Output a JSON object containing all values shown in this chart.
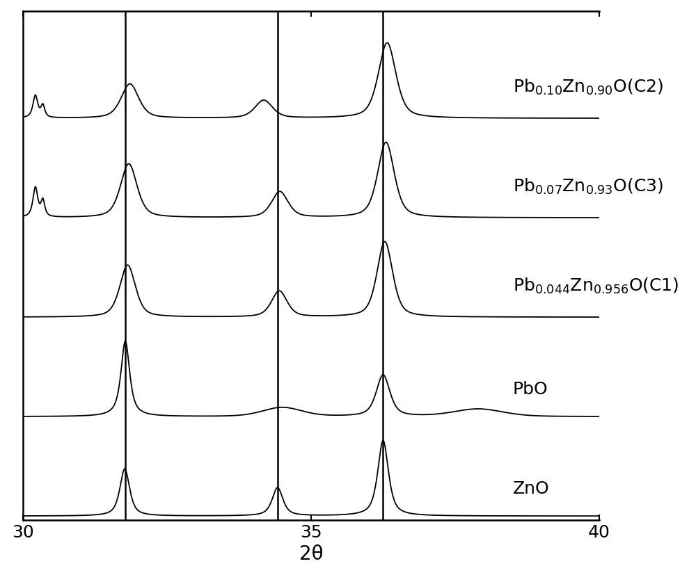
{
  "xmin": 30,
  "xmax": 40,
  "xlabel": "2θ",
  "vlines": [
    31.78,
    34.42,
    36.25
  ],
  "background_color": "#ffffff",
  "line_color": "#000000",
  "fontsize_label": 18,
  "fontsize_tick": 18,
  "fontsize_xlabel": 20
}
